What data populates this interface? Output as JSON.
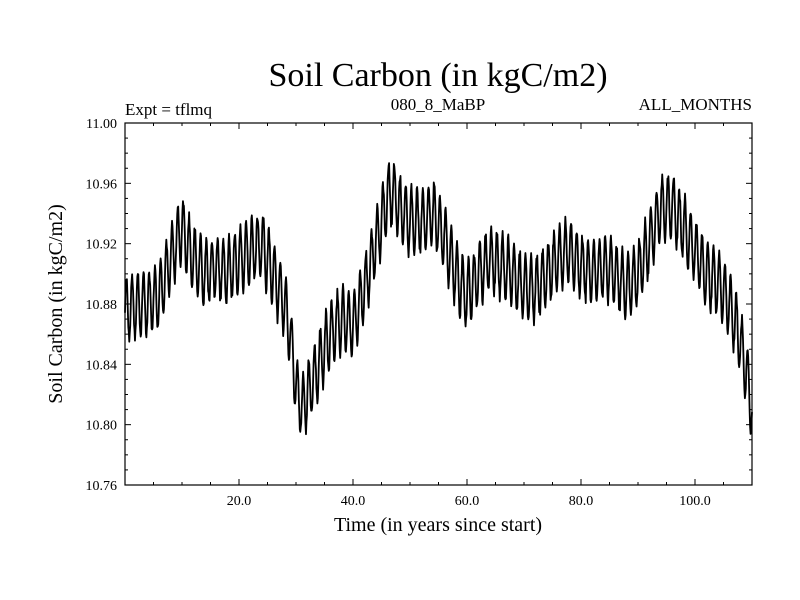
{
  "chart_data": {
    "type": "line",
    "title": "Soil Carbon (in kgC/m2)",
    "experiment_label": "Expt = tflmq",
    "center_label": "080_8_MaBP",
    "right_label": "ALL_MONTHS",
    "xlabel": "Time (in years since start)",
    "ylabel": "Soil Carbon (in kgC/m2)",
    "xlim": [
      0,
      110
    ],
    "ylim": [
      10.76,
      11.0
    ],
    "x_ticks": [
      20,
      40,
      60,
      80,
      100
    ],
    "x_tick_labels": [
      "20.0",
      "40.0",
      "60.0",
      "80.0",
      "100.0"
    ],
    "y_ticks": [
      10.76,
      10.8,
      10.84,
      10.88,
      10.92,
      10.96,
      11.0
    ],
    "y_tick_labels": [
      "10.76",
      "10.80",
      "10.84",
      "10.88",
      "10.92",
      "10.96",
      "11.00"
    ],
    "series": [
      {
        "name": "Soil Carbon",
        "color": "#000000",
        "x": [
          0,
          2,
          4,
          6,
          8,
          10,
          12,
          14,
          16,
          18,
          20,
          22,
          24,
          26,
          28,
          29,
          30,
          31,
          32,
          34,
          36,
          38,
          40,
          42,
          44,
          46,
          47,
          48,
          50,
          52,
          54,
          56,
          58,
          60,
          62,
          64,
          66,
          68,
          70,
          72,
          74,
          76,
          78,
          80,
          82,
          84,
          86,
          88,
          90,
          92,
          94,
          96,
          98,
          100,
          102,
          104,
          106,
          108,
          109,
          110
        ],
        "y": [
          10.875,
          10.88,
          10.88,
          10.885,
          10.91,
          10.93,
          10.91,
          10.9,
          10.905,
          10.9,
          10.91,
          10.915,
          10.92,
          10.9,
          10.88,
          10.86,
          10.825,
          10.81,
          10.82,
          10.84,
          10.86,
          10.87,
          10.865,
          10.89,
          10.92,
          10.95,
          10.955,
          10.945,
          10.935,
          10.935,
          10.94,
          10.925,
          10.9,
          10.885,
          10.9,
          10.91,
          10.905,
          10.9,
          10.89,
          10.89,
          10.9,
          10.91,
          10.915,
          10.905,
          10.9,
          10.905,
          10.9,
          10.89,
          10.9,
          10.92,
          10.945,
          10.945,
          10.93,
          10.915,
          10.9,
          10.895,
          10.88,
          10.855,
          10.835,
          10.81
        ]
      }
    ]
  }
}
